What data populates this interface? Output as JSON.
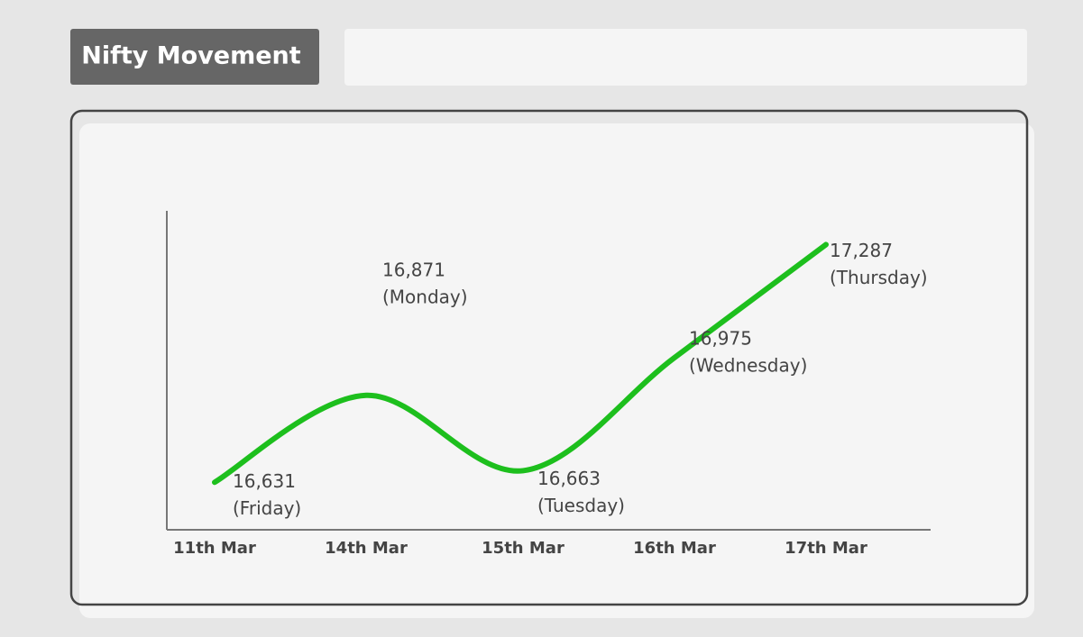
{
  "chart_data": {
    "type": "line",
    "title": "Nifty Movement",
    "categories": [
      "11th Mar",
      "14th Mar",
      "15th Mar",
      "16th Mar",
      "17th Mar"
    ],
    "values": [
      16631,
      16871,
      16663,
      16975,
      17287
    ],
    "value_labels": [
      "16,631",
      "16,871",
      "16,663",
      "16,975",
      "17,287"
    ],
    "day_labels": [
      "(Friday)",
      "(Monday)",
      "(Tuesday)",
      "(Wednesday)",
      "(Thursday)"
    ],
    "color": "#1dbf1d",
    "ylim": [
      16500,
      17380
    ]
  }
}
